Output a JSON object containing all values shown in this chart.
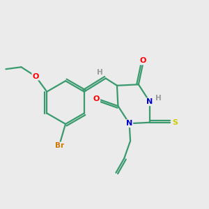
{
  "background_color": "#ebebeb",
  "bond_color": "#3a9a6e",
  "atom_colors": {
    "O": "#ff0000",
    "N": "#0000cc",
    "S": "#cccc00",
    "Br": "#cc7700",
    "H": "#999999",
    "C": "#3a9a6e"
  },
  "figsize": [
    3.0,
    3.0
  ],
  "dpi": 100
}
